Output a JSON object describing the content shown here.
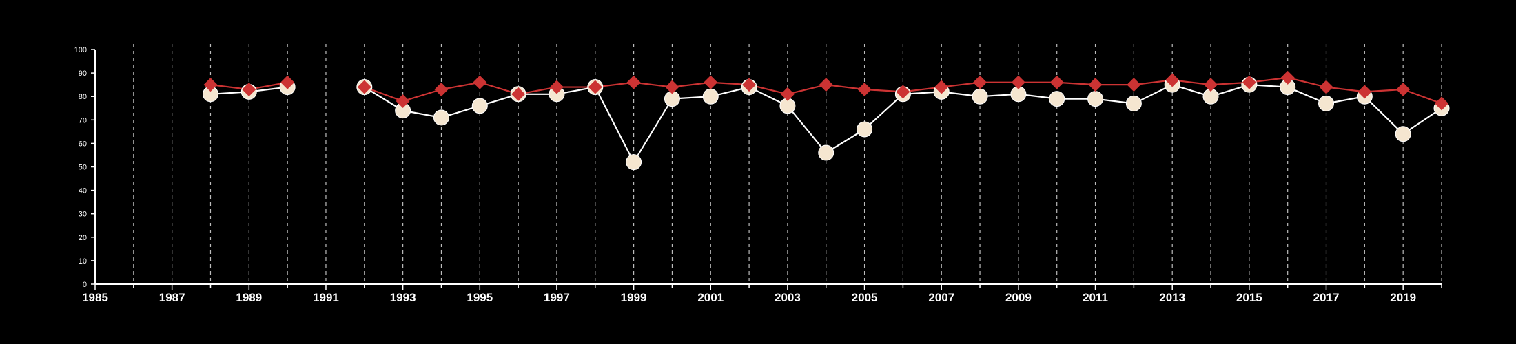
{
  "chart_data": {
    "type": "line",
    "title": "",
    "xlabel": "",
    "ylabel": "",
    "xlim": [
      1985,
      2020
    ],
    "ylim": [
      0,
      100
    ],
    "y_ticks": [
      0,
      10,
      20,
      30,
      40,
      50,
      60,
      70,
      80,
      90,
      100
    ],
    "x_tick_labels": [
      1985,
      1987,
      1989,
      1991,
      1993,
      1995,
      1997,
      1999,
      2001,
      2003,
      2005,
      2007,
      2009,
      2011,
      2013,
      2015,
      2017,
      2019
    ],
    "vertical_grid": "dashed, every year",
    "horizontal_grid": false,
    "legend": "none",
    "x": [
      1988,
      1989,
      1990,
      1992,
      1993,
      1994,
      1995,
      1996,
      1997,
      1998,
      1999,
      2000,
      2001,
      2002,
      2003,
      2004,
      2005,
      2006,
      2007,
      2008,
      2009,
      2010,
      2011,
      2012,
      2013,
      2014,
      2015,
      2016,
      2017,
      2018,
      2019,
      2020
    ],
    "series": [
      {
        "marker": "circle",
        "color": "#f5e6d0",
        "line_color": "#ffffff",
        "values": [
          81,
          82,
          84,
          84,
          74,
          71,
          76,
          81,
          81,
          84,
          52,
          79,
          80,
          84,
          76,
          56,
          66,
          81,
          82,
          80,
          81,
          79,
          79,
          77,
          85,
          80,
          85,
          84,
          77,
          80,
          64,
          75
        ]
      },
      {
        "marker": "diamond",
        "color": "#cc3333",
        "line_color": "#cc3333",
        "values": [
          85,
          83,
          86,
          84,
          78,
          83,
          86,
          81,
          84,
          84,
          86,
          84,
          86,
          85,
          81,
          85,
          83,
          82,
          84,
          86,
          86,
          86,
          85,
          85,
          87,
          85,
          86,
          88,
          84,
          82,
          83,
          77
        ]
      }
    ]
  }
}
